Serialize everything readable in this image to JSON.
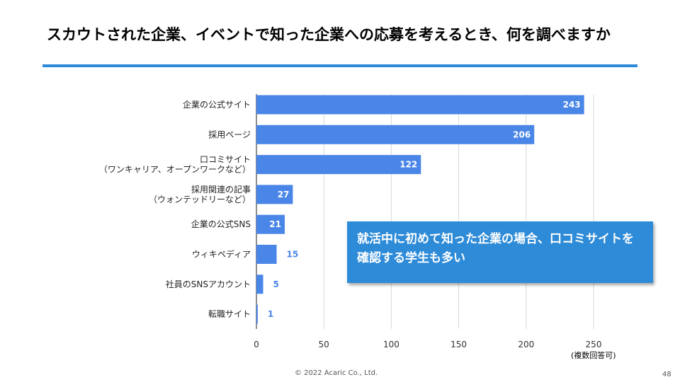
{
  "page": {
    "title": "スカウトされた企業、イベントで知った企業への応募を考えるとき、何を調べますか",
    "callout": "就活中に初めて知った企業の場合、口コミサイトを確認する学生も多い",
    "note": "(複数回答可)",
    "footer": "© 2022 Acaric Co., Ltd.",
    "page_number": "48"
  },
  "colors": {
    "bar": "#4a86e8",
    "accent": "#2e8bd8",
    "label_outside": "#4a86e8"
  },
  "chart_data": {
    "type": "bar",
    "orientation": "horizontal",
    "title": "",
    "categories": [
      [
        "企業の公式サイト"
      ],
      [
        "採用ページ"
      ],
      [
        "口コミサイト",
        "（ワンキャリア、オープンワークなど）"
      ],
      [
        "採用関連の記事",
        "（ウォンテッドリーなど）"
      ],
      [
        "企業の公式SNS"
      ],
      [
        "ウィキペディア"
      ],
      [
        "社員のSNSアカウント"
      ],
      [
        "転職サイト"
      ]
    ],
    "values": [
      243,
      206,
      122,
      27,
      21,
      15,
      5,
      1
    ],
    "xlim": [
      0,
      250
    ],
    "xticks": [
      0,
      50,
      100,
      150,
      200,
      250
    ],
    "grid": true,
    "xlabel": "",
    "ylabel": ""
  }
}
